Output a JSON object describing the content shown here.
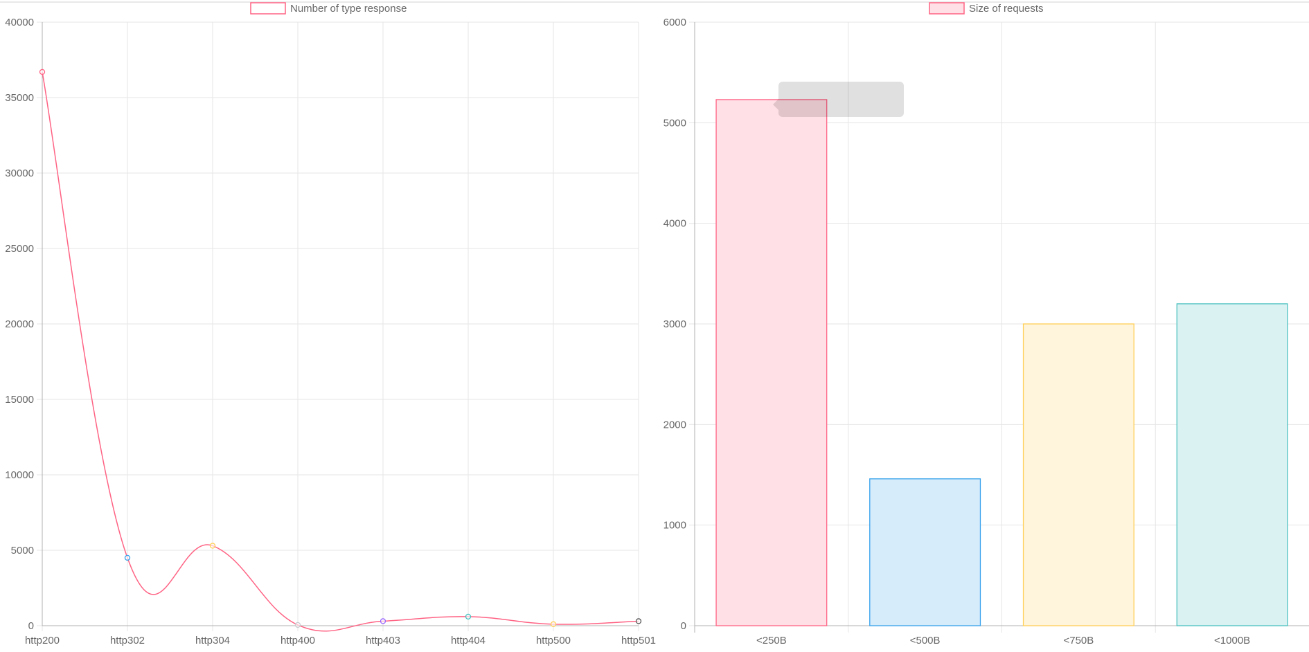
{
  "colors": {
    "grid": "#e5e5e5",
    "axis": "#b0b0b0",
    "text": "#666666",
    "pink": "#ff6384",
    "pink_fill": "#ffe0e6",
    "blue": "#36a2eb",
    "blue_fill": "#d7ecfb",
    "yellow": "#ffce56",
    "yellow_fill": "#fff5dd",
    "teal": "#4bc0c0",
    "teal_fill": "#dbf2f2",
    "purple": "#9966ff",
    "grey": "#c9cbcf",
    "black": "#555555"
  },
  "chart_data": [
    {
      "type": "line",
      "legend": "Number of type response",
      "legend_position": "top",
      "grid": true,
      "categories": [
        "http200",
        "http302",
        "http304",
        "http400",
        "http403",
        "http404",
        "http500",
        "http501"
      ],
      "series": [
        {
          "name": "Number of type response",
          "values": [
            36700,
            4500,
            5300,
            50,
            300,
            600,
            100,
            300
          ],
          "point_colors": [
            "pink",
            "blue",
            "yellow",
            "grey",
            "purple",
            "teal",
            "yellow",
            "black"
          ]
        }
      ],
      "ylim": [
        0,
        40000
      ],
      "yticks": [
        "0",
        "5000",
        "10000",
        "15000",
        "20000",
        "25000",
        "30000",
        "35000",
        "40000"
      ]
    },
    {
      "type": "bar",
      "legend": "Size of requests",
      "legend_position": "top",
      "grid": true,
      "categories": [
        "<250B",
        "<500B",
        "<750B",
        "<1000B"
      ],
      "series": [
        {
          "name": "Size of requests",
          "values": [
            5230,
            1460,
            3000,
            3200
          ],
          "colors": [
            "pink",
            "blue",
            "yellow",
            "teal"
          ]
        }
      ],
      "ylim": [
        0,
        6000
      ],
      "yticks": [
        "0",
        "1000",
        "2000",
        "3000",
        "4000",
        "5000",
        "6000"
      ]
    }
  ]
}
